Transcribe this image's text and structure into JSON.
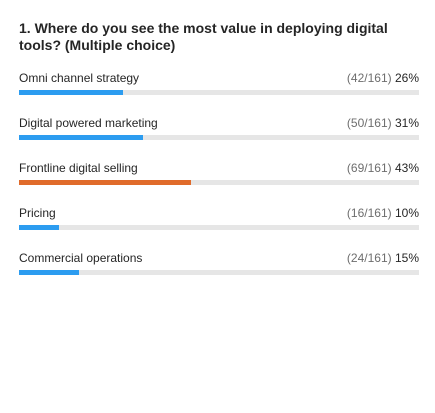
{
  "poll": {
    "question": "1. Where do you see the most value in deploying digital tools? (Multiple choice)",
    "colors": {
      "default_bar": "#2c9cf0",
      "top_bar": "#e06b2b",
      "track": "#e6e6e6"
    },
    "options": [
      {
        "label": "Omni channel strategy",
        "count": "(42/161)",
        "percent": "26%",
        "fraction": 0.26,
        "top": false
      },
      {
        "label": "Digital powered marketing",
        "count": "(50/161)",
        "percent": "31%",
        "fraction": 0.31,
        "top": false
      },
      {
        "label": "Frontline digital selling",
        "count": "(69/161)",
        "percent": "43%",
        "fraction": 0.43,
        "top": true
      },
      {
        "label": "Pricing",
        "count": "(16/161)",
        "percent": "10%",
        "fraction": 0.1,
        "top": false
      },
      {
        "label": "Commercial operations",
        "count": "(24/161)",
        "percent": "15%",
        "fraction": 0.15,
        "top": false
      }
    ]
  }
}
